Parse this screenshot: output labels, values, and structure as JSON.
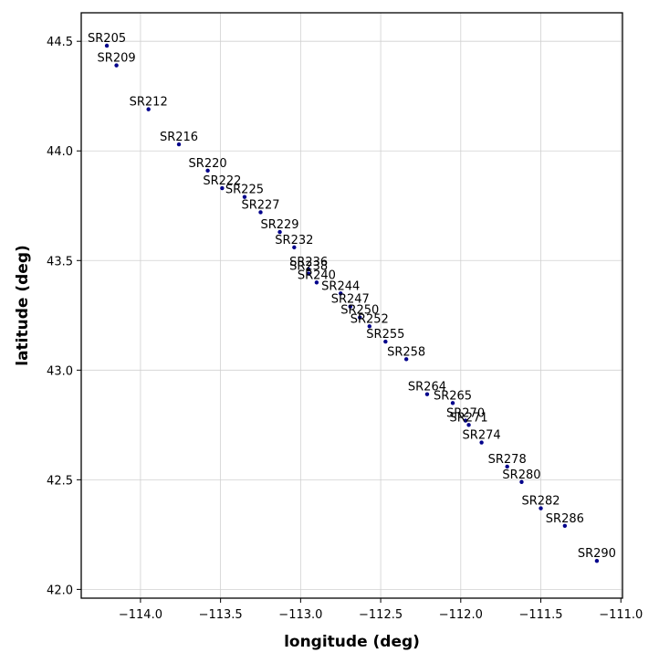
{
  "chart_data": {
    "type": "scatter",
    "title": "",
    "xlabel": "longitude (deg)",
    "ylabel": "latitude (deg)",
    "xlim": [
      -114.37,
      -110.99
    ],
    "ylim": [
      41.96,
      44.63
    ],
    "xticks": [
      -114.0,
      -113.5,
      -113.0,
      -112.5,
      -112.0,
      -111.5,
      -111.0
    ],
    "xtick_labels": [
      "−114.0",
      "−113.5",
      "−113.0",
      "−112.5",
      "−112.0",
      "−111.5",
      "−111.0"
    ],
    "yticks": [
      42.0,
      42.5,
      43.0,
      43.5,
      44.0,
      44.5
    ],
    "ytick_labels": [
      "42.0",
      "42.5",
      "43.0",
      "43.5",
      "44.0",
      "44.5"
    ],
    "grid": true,
    "marker_color": "#00008b",
    "points": [
      {
        "label": "SR205",
        "x": -114.21,
        "y": 44.48
      },
      {
        "label": "SR209",
        "x": -114.15,
        "y": 44.39
      },
      {
        "label": "SR212",
        "x": -113.95,
        "y": 44.19
      },
      {
        "label": "SR216",
        "x": -113.76,
        "y": 44.03
      },
      {
        "label": "SR220",
        "x": -113.58,
        "y": 43.91
      },
      {
        "label": "SR222",
        "x": -113.49,
        "y": 43.83
      },
      {
        "label": "SR225",
        "x": -113.35,
        "y": 43.79
      },
      {
        "label": "SR227",
        "x": -113.25,
        "y": 43.72
      },
      {
        "label": "SR229",
        "x": -113.13,
        "y": 43.63
      },
      {
        "label": "SR232",
        "x": -113.04,
        "y": 43.56
      },
      {
        "label": "SR236",
        "x": -112.95,
        "y": 43.46
      },
      {
        "label": "SR238",
        "x": -112.95,
        "y": 43.44
      },
      {
        "label": "SR240",
        "x": -112.9,
        "y": 43.4
      },
      {
        "label": "SR244",
        "x": -112.75,
        "y": 43.35
      },
      {
        "label": "SR247",
        "x": -112.69,
        "y": 43.29
      },
      {
        "label": "SR250",
        "x": -112.63,
        "y": 43.24
      },
      {
        "label": "SR252",
        "x": -112.57,
        "y": 43.2
      },
      {
        "label": "SR255",
        "x": -112.47,
        "y": 43.13
      },
      {
        "label": "SR258",
        "x": -112.34,
        "y": 43.05
      },
      {
        "label": "SR264",
        "x": -112.21,
        "y": 42.89
      },
      {
        "label": "SR265",
        "x": -112.05,
        "y": 42.85
      },
      {
        "label": "SR270",
        "x": -111.97,
        "y": 42.77
      },
      {
        "label": "SR271",
        "x": -111.95,
        "y": 42.75
      },
      {
        "label": "SR274",
        "x": -111.87,
        "y": 42.67
      },
      {
        "label": "SR278",
        "x": -111.71,
        "y": 42.56
      },
      {
        "label": "SR280",
        "x": -111.62,
        "y": 42.49
      },
      {
        "label": "SR282",
        "x": -111.5,
        "y": 42.37
      },
      {
        "label": "SR286",
        "x": -111.35,
        "y": 42.29
      },
      {
        "label": "SR290",
        "x": -111.15,
        "y": 42.13
      }
    ]
  }
}
